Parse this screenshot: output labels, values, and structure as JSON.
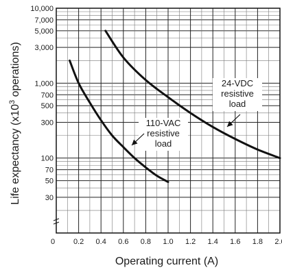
{
  "chart_data": {
    "type": "line",
    "title": "",
    "xlabel": "Operating current (A)",
    "ylabel_text": "Life expectancy (x10",
    "ylabel_sup": "3",
    "ylabel_tail": " operations)",
    "xlim": [
      0,
      2.0
    ],
    "ylim": [
      10,
      10000
    ],
    "y_scale": "log",
    "grid": true,
    "x_ticks": [
      "0",
      "0.2",
      "0.4",
      "0.6",
      "0.8",
      "1.0",
      "1.2",
      "1.4",
      "1.6",
      "1.8",
      "2.0"
    ],
    "y_ticks": [
      "10,000",
      "7,000",
      "5,000",
      "3,000",
      "1,000",
      "700",
      "500",
      "300",
      "100",
      "70",
      "50",
      "30"
    ],
    "y_tick_values": [
      10000,
      7000,
      5000,
      3000,
      1000,
      700,
      500,
      300,
      100,
      70,
      50,
      30
    ],
    "series": [
      {
        "name": "24-VDC resistive load",
        "label_lines": [
          "24-VDC",
          "resistive",
          "load"
        ],
        "x": [
          0.44,
          0.6,
          0.8,
          1.0,
          1.2,
          1.4,
          1.6,
          1.8,
          2.0
        ],
        "y": [
          5000,
          2200,
          1100,
          650,
          400,
          260,
          180,
          130,
          100
        ]
      },
      {
        "name": "110-VAC resistive load",
        "label_lines": [
          "110-VAC",
          "resistive",
          "load"
        ],
        "x": [
          0.12,
          0.2,
          0.3,
          0.4,
          0.5,
          0.6,
          0.7,
          0.8,
          0.9,
          1.0
        ],
        "y": [
          2000,
          1000,
          550,
          320,
          200,
          140,
          100,
          75,
          58,
          48
        ]
      }
    ]
  }
}
